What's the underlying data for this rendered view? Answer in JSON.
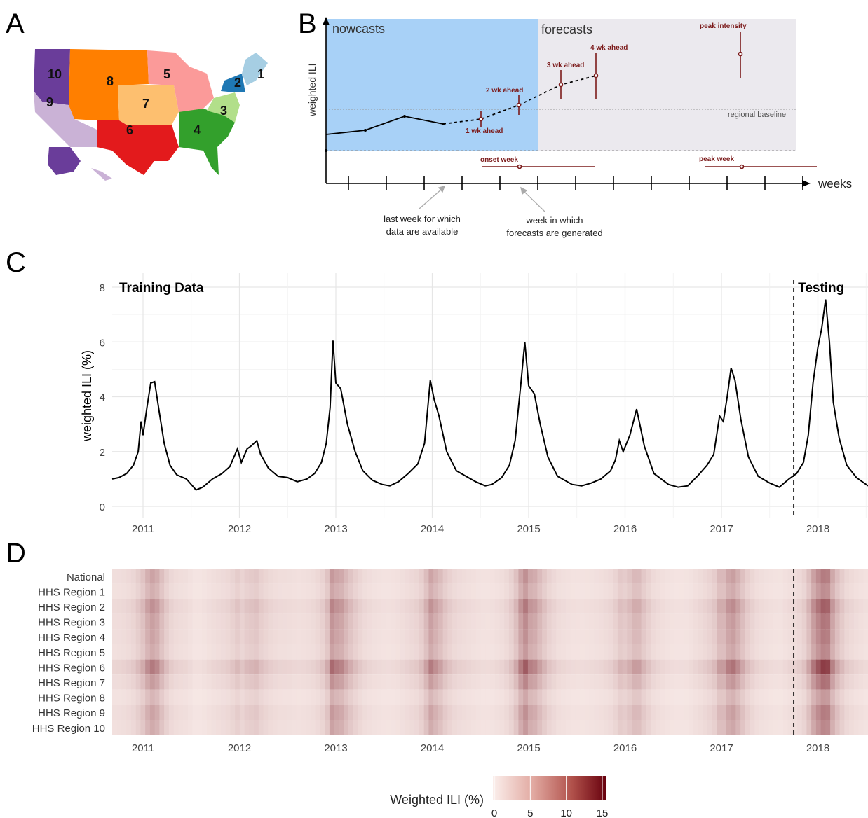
{
  "panels": {
    "a": "A",
    "b": "B",
    "c": "C",
    "d": "D"
  },
  "map": {
    "regions": [
      {
        "id": "1",
        "color": "#a6cee3"
      },
      {
        "id": "2",
        "color": "#1f78b4"
      },
      {
        "id": "3",
        "color": "#b2df8a"
      },
      {
        "id": "4",
        "color": "#33a02c"
      },
      {
        "id": "5",
        "color": "#fb9a99"
      },
      {
        "id": "6",
        "color": "#e31a1c"
      },
      {
        "id": "7",
        "color": "#fdbf6f"
      },
      {
        "id": "8",
        "color": "#ff7f00"
      },
      {
        "id": "9",
        "color": "#cab2d6"
      },
      {
        "id": "10",
        "color": "#6a3d9a"
      }
    ]
  },
  "schematic": {
    "nowcasts": "nowcasts",
    "forecasts": "forecasts",
    "ylabel": "weighted ILI",
    "xlabel": "weeks",
    "baseline": "regional baseline",
    "wk1": "1 wk ahead",
    "wk2": "2 wk ahead",
    "wk3": "3 wk ahead",
    "wk4": "4 wk ahead",
    "peak_intensity": "peak intensity",
    "onset_week": "onset week",
    "peak_week": "peak week",
    "note_last_1": "last week for which",
    "note_last_2": "data are available",
    "note_gen_1": "week in which",
    "note_gen_2": "forecasts are generated",
    "nowcast_color": "#a8d1f7",
    "forecast_color": "#ebe9ee",
    "interval_color": "#7b1a1a"
  },
  "chart_data": [
    {
      "type": "line",
      "title": "",
      "ylabel": "weighted ILI (%)",
      "xlabel": "",
      "ylim": [
        0,
        8
      ],
      "yticks": [
        "0",
        "2",
        "4",
        "6",
        "8"
      ],
      "xticks": [
        "2011",
        "2012",
        "2013",
        "2014",
        "2015",
        "2016",
        "2017",
        "2018"
      ],
      "annotations": {
        "training": "Training Data",
        "testing": "Testing",
        "split": 2017.75
      },
      "grid": true,
      "series": [
        {
          "values": [
            [
              2010.68,
              1.0
            ],
            [
              2010.75,
              1.05
            ],
            [
              2010.83,
              1.2
            ],
            [
              2010.9,
              1.5
            ],
            [
              2010.95,
              2.0
            ],
            [
              2010.98,
              3.1
            ],
            [
              2011.0,
              2.6
            ],
            [
              2011.04,
              3.6
            ],
            [
              2011.08,
              4.5
            ],
            [
              2011.12,
              4.55
            ],
            [
              2011.17,
              3.4
            ],
            [
              2011.22,
              2.3
            ],
            [
              2011.28,
              1.5
            ],
            [
              2011.35,
              1.15
            ],
            [
              2011.45,
              1.0
            ],
            [
              2011.55,
              0.6
            ],
            [
              2011.62,
              0.7
            ],
            [
              2011.72,
              1.0
            ],
            [
              2011.82,
              1.2
            ],
            [
              2011.9,
              1.45
            ],
            [
              2011.98,
              2.1
            ],
            [
              2012.02,
              1.6
            ],
            [
              2012.08,
              2.1
            ],
            [
              2012.12,
              2.2
            ],
            [
              2012.18,
              2.4
            ],
            [
              2012.22,
              1.9
            ],
            [
              2012.3,
              1.4
            ],
            [
              2012.4,
              1.1
            ],
            [
              2012.5,
              1.05
            ],
            [
              2012.6,
              0.9
            ],
            [
              2012.7,
              1.0
            ],
            [
              2012.78,
              1.2
            ],
            [
              2012.85,
              1.6
            ],
            [
              2012.9,
              2.3
            ],
            [
              2012.94,
              3.6
            ],
            [
              2012.97,
              6.05
            ],
            [
              2013.0,
              4.5
            ],
            [
              2013.05,
              4.3
            ],
            [
              2013.12,
              3.0
            ],
            [
              2013.2,
              2.0
            ],
            [
              2013.28,
              1.3
            ],
            [
              2013.38,
              0.95
            ],
            [
              2013.48,
              0.8
            ],
            [
              2013.56,
              0.75
            ],
            [
              2013.65,
              0.9
            ],
            [
              2013.75,
              1.2
            ],
            [
              2013.85,
              1.55
            ],
            [
              2013.92,
              2.3
            ],
            [
              2013.98,
              4.6
            ],
            [
              2014.02,
              3.9
            ],
            [
              2014.07,
              3.3
            ],
            [
              2014.15,
              2.0
            ],
            [
              2014.25,
              1.3
            ],
            [
              2014.35,
              1.1
            ],
            [
              2014.45,
              0.9
            ],
            [
              2014.55,
              0.75
            ],
            [
              2014.62,
              0.8
            ],
            [
              2014.72,
              1.05
            ],
            [
              2014.8,
              1.5
            ],
            [
              2014.86,
              2.4
            ],
            [
              2014.92,
              4.5
            ],
            [
              2014.96,
              6.0
            ],
            [
              2015.0,
              4.4
            ],
            [
              2015.06,
              4.1
            ],
            [
              2015.12,
              3.0
            ],
            [
              2015.2,
              1.8
            ],
            [
              2015.3,
              1.1
            ],
            [
              2015.45,
              0.8
            ],
            [
              2015.55,
              0.75
            ],
            [
              2015.65,
              0.85
            ],
            [
              2015.75,
              1.0
            ],
            [
              2015.85,
              1.3
            ],
            [
              2015.9,
              1.7
            ],
            [
              2015.94,
              2.4
            ],
            [
              2015.98,
              2.0
            ],
            [
              2016.05,
              2.6
            ],
            [
              2016.12,
              3.55
            ],
            [
              2016.2,
              2.2
            ],
            [
              2016.3,
              1.2
            ],
            [
              2016.45,
              0.8
            ],
            [
              2016.55,
              0.7
            ],
            [
              2016.65,
              0.75
            ],
            [
              2016.75,
              1.1
            ],
            [
              2016.85,
              1.5
            ],
            [
              2016.92,
              1.9
            ],
            [
              2016.98,
              3.3
            ],
            [
              2017.02,
              3.1
            ],
            [
              2017.06,
              4.0
            ],
            [
              2017.1,
              5.05
            ],
            [
              2017.14,
              4.6
            ],
            [
              2017.2,
              3.2
            ],
            [
              2017.28,
              1.8
            ],
            [
              2017.38,
              1.1
            ],
            [
              2017.5,
              0.85
            ],
            [
              2017.6,
              0.7
            ],
            [
              2017.7,
              1.0
            ],
            [
              2017.78,
              1.2
            ],
            [
              2017.85,
              1.6
            ],
            [
              2017.9,
              2.6
            ],
            [
              2017.95,
              4.5
            ],
            [
              2018.0,
              5.8
            ],
            [
              2018.04,
              6.5
            ],
            [
              2018.08,
              7.55
            ],
            [
              2018.12,
              6.0
            ],
            [
              2018.16,
              3.8
            ],
            [
              2018.22,
              2.5
            ],
            [
              2018.3,
              1.5
            ],
            [
              2018.4,
              1.05
            ],
            [
              2018.5,
              0.8
            ],
            [
              2018.52,
              0.75
            ]
          ]
        }
      ]
    },
    {
      "type": "heatmap",
      "rows": [
        "National",
        "HHS Region 1",
        "HHS Region 2",
        "HHS Region 3",
        "HHS Region 4",
        "HHS Region 5",
        "HHS Region 6",
        "HHS Region 7",
        "HHS Region 8",
        "HHS Region 9",
        "HHS Region 10"
      ],
      "xticks": [
        "2011",
        "2012",
        "2013",
        "2014",
        "2015",
        "2016",
        "2017",
        "2018"
      ],
      "colorbar_label": "Weighted ILI (%)",
      "colorbar_ticks": [
        "0",
        "5",
        "10",
        "15"
      ],
      "color_low": "#fbefec",
      "color_high": "#67000d",
      "range": [
        0,
        15
      ],
      "split": 2017.75
    }
  ]
}
